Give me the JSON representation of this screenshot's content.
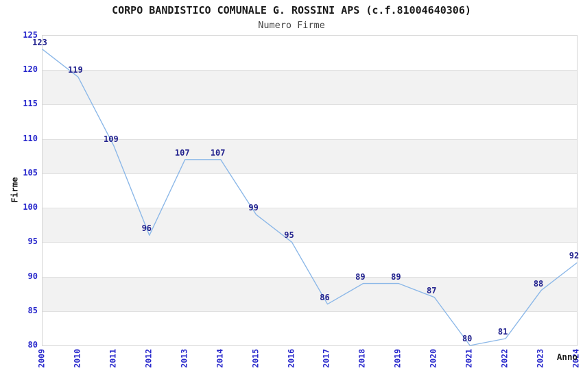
{
  "title": "CORPO BANDISTICO COMUNALE G. ROSSINI APS (c.f.81004640306)",
  "subtitle": "Numero Firme",
  "chart_data": {
    "type": "line",
    "x": [
      2009,
      2010,
      2011,
      2012,
      2013,
      2014,
      2015,
      2016,
      2017,
      2018,
      2019,
      2020,
      2021,
      2022,
      2023,
      2024
    ],
    "values": [
      123,
      119,
      109,
      96,
      107,
      107,
      99,
      95,
      86,
      89,
      89,
      87,
      80,
      81,
      88,
      92
    ],
    "series": [
      {
        "name": "Numero Firme",
        "values": [
          123,
          119,
          109,
          96,
          107,
          107,
          99,
          95,
          86,
          89,
          89,
          87,
          80,
          81,
          88,
          92
        ]
      }
    ],
    "title": "CORPO BANDISTICO COMUNALE G. ROSSINI APS (c.f.81004640306)",
    "xlabel": "Anno",
    "ylabel": "Firme",
    "ylim": [
      80,
      125
    ],
    "yticks": [
      80,
      85,
      90,
      95,
      100,
      105,
      110,
      115,
      120,
      125
    ],
    "grid": "horizontal-bands-alternating",
    "legend": "none",
    "data_labels_visible": true,
    "colors": {
      "line": "#8cb8e8",
      "tick_label": "#2828cc",
      "data_label": "#22228e",
      "band_gray": "#f2f2f2",
      "grid_line": "#e0e0e0",
      "plot_border": "#d4d4d4",
      "title_text": "#1a1a1a",
      "subtitle_text": "#454545"
    }
  }
}
